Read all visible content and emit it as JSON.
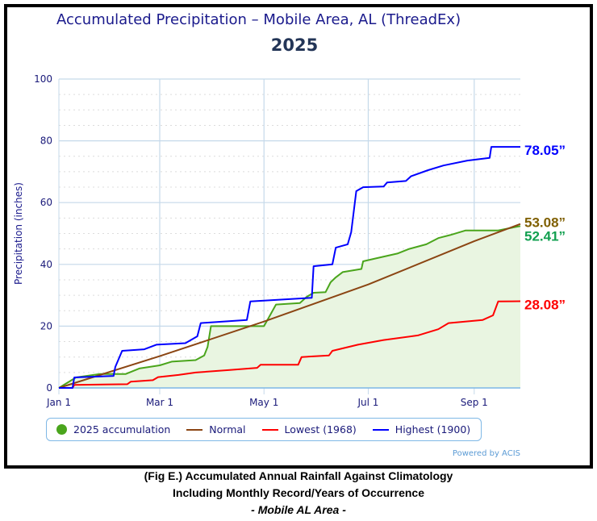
{
  "chart_data": {
    "type": "line",
    "title": "Accumulated Precipitation - Mobile Area, AL (ThreadEx)",
    "subtitle": "2025",
    "ylabel": "Precipitation (inches)",
    "xlabel": "",
    "ylim": [
      0,
      100
    ],
    "yticks": [
      "0",
      "20",
      "40",
      "60",
      "80",
      "100"
    ],
    "xticks": [
      "Jan 1",
      "Mar 1",
      "May 1",
      "Jul 1",
      "Sep 1"
    ],
    "xlim": [
      "2025-01-01",
      "2025-09-28"
    ],
    "grid": true,
    "legend_placement": "bottom",
    "credit": "Powered by ACIS",
    "series": [
      {
        "name": "2025 accumulation",
        "color": "#4aa51c",
        "fill": "#e9f5e1",
        "end_label": "52.41”",
        "label_color": "#12a050",
        "points": [
          [
            "01-01",
            0
          ],
          [
            "01-11",
            3.4
          ],
          [
            "01-25",
            4.5
          ],
          [
            "02-09",
            4.5
          ],
          [
            "02-17",
            6.3
          ],
          [
            "03-01",
            7.3
          ],
          [
            "03-08",
            8.5
          ],
          [
            "03-22",
            9
          ],
          [
            "03-27",
            10.5
          ],
          [
            "03-29",
            13.3
          ],
          [
            "03-31",
            20
          ],
          [
            "05-01",
            20
          ],
          [
            "05-03",
            22
          ],
          [
            "05-08",
            27
          ],
          [
            "05-22",
            27.5
          ],
          [
            "05-26",
            29.5
          ],
          [
            "05-30",
            30.8
          ],
          [
            "06-06",
            31
          ],
          [
            "06-09",
            34.2
          ],
          [
            "06-12",
            35.8
          ],
          [
            "06-16",
            37.5
          ],
          [
            "06-27",
            38.5
          ],
          [
            "06-28",
            41
          ],
          [
            "07-06",
            42
          ],
          [
            "07-18",
            43.5
          ],
          [
            "07-25",
            45
          ],
          [
            "08-04",
            46.5
          ],
          [
            "08-11",
            48.5
          ],
          [
            "08-18",
            49.5
          ],
          [
            "08-27",
            51
          ],
          [
            "09-15",
            51
          ],
          [
            "09-28",
            52.41
          ]
        ]
      },
      {
        "name": "Normal",
        "color": "#8b4513",
        "end_label": "53.08”",
        "label_color": "#7f5f00",
        "points": [
          [
            "01-01",
            0
          ],
          [
            "03-01",
            10.3
          ],
          [
            "05-01",
            21.5
          ],
          [
            "07-01",
            33.5
          ],
          [
            "09-01",
            47.5
          ],
          [
            "09-28",
            53.08
          ]
        ]
      },
      {
        "name": "Lowest (1968)",
        "color": "#ff0000",
        "end_label": "28.08”",
        "label_color": "#ff0000",
        "points": [
          [
            "01-01",
            0
          ],
          [
            "01-09",
            0
          ],
          [
            "01-10",
            1
          ],
          [
            "02-10",
            1.2
          ],
          [
            "02-12",
            2
          ],
          [
            "02-25",
            2.5
          ],
          [
            "02-28",
            3.5
          ],
          [
            "03-12",
            4.2
          ],
          [
            "03-22",
            5
          ],
          [
            "04-11",
            5.8
          ],
          [
            "04-27",
            6.5
          ],
          [
            "04-29",
            7.5
          ],
          [
            "05-21",
            7.5
          ],
          [
            "05-23",
            10
          ],
          [
            "06-08",
            10.5
          ],
          [
            "06-10",
            12
          ],
          [
            "06-25",
            14
          ],
          [
            "07-10",
            15.5
          ],
          [
            "07-30",
            17
          ],
          [
            "08-11",
            19
          ],
          [
            "08-17",
            21
          ],
          [
            "09-06",
            22
          ],
          [
            "09-12",
            23.5
          ],
          [
            "09-15",
            28
          ],
          [
            "09-28",
            28.08
          ]
        ]
      },
      {
        "name": "Highest (1900)",
        "color": "#0000ff",
        "end_label": "78.05”",
        "label_color": "#0000ff",
        "points": [
          [
            "01-01",
            0
          ],
          [
            "01-09",
            0
          ],
          [
            "01-10",
            3.4
          ],
          [
            "02-02",
            3.9
          ],
          [
            "02-03",
            6.8
          ],
          [
            "02-07",
            12
          ],
          [
            "02-20",
            12.5
          ],
          [
            "02-27",
            14
          ],
          [
            "03-16",
            14.5
          ],
          [
            "03-23",
            16.7
          ],
          [
            "03-25",
            21
          ],
          [
            "04-21",
            22
          ],
          [
            "04-23",
            28
          ],
          [
            "05-29",
            29.2
          ],
          [
            "05-30",
            39.4
          ],
          [
            "06-10",
            40
          ],
          [
            "06-12",
            45.4
          ],
          [
            "06-19",
            46.5
          ],
          [
            "06-21",
            50.4
          ],
          [
            "06-24",
            63.7
          ],
          [
            "06-28",
            65
          ],
          [
            "07-10",
            65.2
          ],
          [
            "07-12",
            66.5
          ],
          [
            "07-23",
            67
          ],
          [
            "07-26",
            68.5
          ],
          [
            "08-05",
            70.5
          ],
          [
            "08-14",
            72
          ],
          [
            "08-28",
            73.6
          ],
          [
            "09-10",
            74.5
          ],
          [
            "09-11",
            78.05
          ],
          [
            "09-28",
            78.05
          ]
        ]
      }
    ]
  },
  "caption": {
    "line1": "(Fig E.) Accumulated Annual Rainfall Against  Climatology",
    "line2": "Including Monthly Record/Years of Occurrence",
    "line3": "- Mobile AL Area -"
  }
}
